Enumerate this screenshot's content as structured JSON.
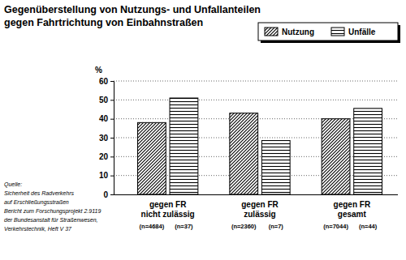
{
  "chart_data": {
    "type": "bar",
    "title": [
      "Gegenüberstellung von Nutzungs- und Unfallanteilen",
      "gegen Fahrtrichtung von Einbahnstraßen"
    ],
    "ylabel": "%",
    "categories": [
      [
        "gegen FR",
        "nicht zulässig"
      ],
      [
        "gegen FR",
        "zulässig"
      ],
      [
        "gegen FR",
        "gesamt"
      ]
    ],
    "series": [
      {
        "name": "Nutzung",
        "color": "#000000",
        "marker": "diagonal",
        "values": [
          38,
          43,
          40
        ],
        "n_labels": [
          "(n=4684)",
          "(n=2360)",
          "(n=7044)"
        ]
      },
      {
        "name": "Unfälle",
        "color": "#000000",
        "marker": "horizontal",
        "values": [
          51,
          28.5,
          45.5
        ],
        "n_labels": [
          "(n=37)",
          "(n=7)",
          "(n=44)"
        ]
      }
    ],
    "ylim": [
      0,
      60
    ],
    "yticks": [
      0,
      10,
      20,
      30,
      40,
      50,
      60
    ],
    "grid": true,
    "legend": "upper right",
    "source": [
      "Quelle:",
      "Sicherheit des Radverkehrs",
      "auf Erschließungsstraßen",
      "Bericht zum Forschungsprojekt 2.9119",
      "der Bundesanstalt für Straßenwesen,",
      "Verkehrstechnik, Heft V 37"
    ]
  }
}
